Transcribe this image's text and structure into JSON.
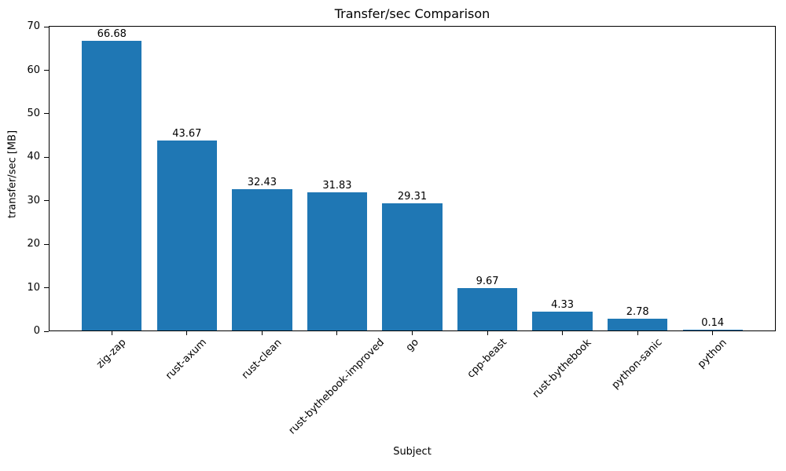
{
  "chart_data": {
    "type": "bar",
    "title": "Transfer/sec Comparison",
    "xlabel": "Subject",
    "ylabel": "transfer/sec [MB]",
    "categories": [
      "zig-zap",
      "rust-axum",
      "rust-clean",
      "rust-bythebook-improved",
      "go",
      "cpp-beast",
      "rust-bythebook",
      "python-sanic",
      "python"
    ],
    "values": [
      66.68,
      43.67,
      32.43,
      31.83,
      29.31,
      9.67,
      4.33,
      2.78,
      0.14
    ],
    "bar_labels": [
      "66.68",
      "43.67",
      "32.43",
      "31.83",
      "29.31",
      "9.67",
      "4.33",
      "2.78",
      "0.14"
    ],
    "yticks": [
      0,
      10,
      20,
      30,
      40,
      50,
      60,
      70
    ],
    "ylim": [
      0,
      70
    ],
    "bar_color": "#1f77b4",
    "text_color": "#000000",
    "grid": false,
    "legend": "none"
  }
}
